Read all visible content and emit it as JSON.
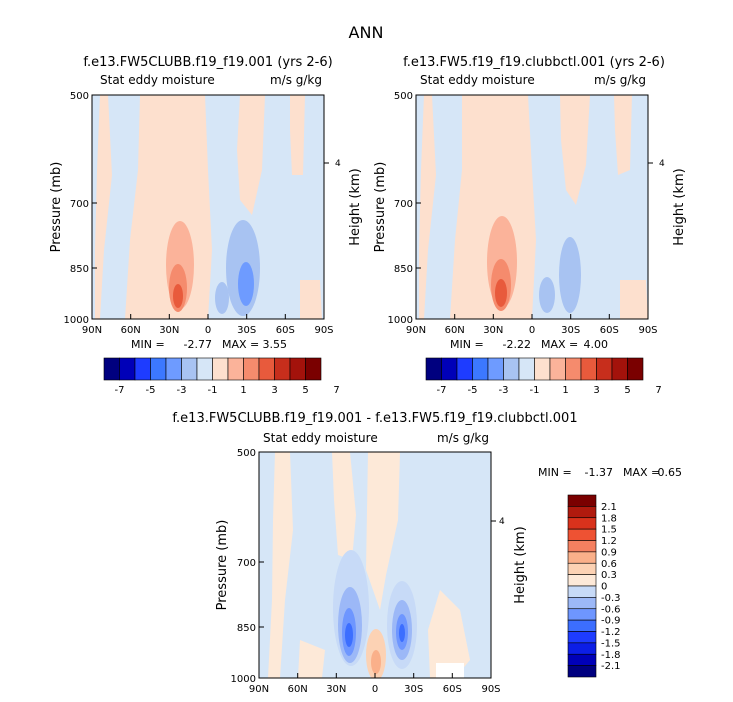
{
  "figure": {
    "title": "ANN"
  },
  "colors": {
    "diverging_main": [
      "#00007f",
      "#0000b8",
      "#1e3cff",
      "#3c78ff",
      "#6e9bff",
      "#a8c3f2",
      "#d6e6f7",
      "#fde0ce",
      "#fbb39a",
      "#f58b6d",
      "#e85a3c",
      "#c72e1c",
      "#a3120b",
      "#7a0000"
    ],
    "diverging_diff": [
      "#00007f",
      "#0000b8",
      "#0c1ee6",
      "#1e3cff",
      "#3c6eff",
      "#6e96ff",
      "#9cb8f7",
      "#c7daf7",
      "#fde9d8",
      "#fcd2b4",
      "#fab08a",
      "#f58060",
      "#ee5233",
      "#d9321c",
      "#b01a0e",
      "#7a0000"
    ],
    "field_light_blue": "#d6e6f7",
    "field_light_orange": "#fde9d8"
  },
  "chart_data": [
    {
      "type": "heatmap",
      "title": "f.e13.FW5CLUBB.f19_f19.001 (yrs 2-6)",
      "left_string": "Stat eddy moisture",
      "right_string": "m/s g/kg",
      "ylabel": "Pressure (mb)",
      "ylabel_right": "Height (km)",
      "x_ticks": [
        "90N",
        "60N",
        "30N",
        "0",
        "30S",
        "60S",
        "90S"
      ],
      "y_ticks": [
        "500",
        "700",
        "850",
        "1000"
      ],
      "y_ticks_right": [
        "4"
      ],
      "xlim": [
        90,
        -90
      ],
      "ylim": [
        1000,
        500
      ],
      "y_scale": "log",
      "min_label": "MIN =",
      "min_value": "-2.77",
      "max_label": "MAX =",
      "max_value": "3.55",
      "colorbar_labels": [
        "-7",
        "-5",
        "-3",
        "-1",
        "1",
        "3",
        "5",
        "7"
      ],
      "colorbar_orientation": "horizontal",
      "features": [
        {
          "lat": 26,
          "p": 880,
          "value": 3.55,
          "sign": "positive"
        },
        {
          "lat": -28,
          "p": 860,
          "value": -2.77,
          "sign": "negative"
        }
      ]
    },
    {
      "type": "heatmap",
      "title": "f.e13.FW5.f19_f19.clubbctl.001 (yrs 2-6)",
      "left_string": "Stat eddy moisture",
      "right_string": "m/s g/kg",
      "ylabel": "Pressure (mb)",
      "ylabel_right": "Height (km)",
      "x_ticks": [
        "90N",
        "60N",
        "30N",
        "0",
        "30S",
        "60S",
        "90S"
      ],
      "y_ticks": [
        "500",
        "700",
        "850",
        "1000"
      ],
      "y_ticks_right": [
        "4"
      ],
      "xlim": [
        90,
        -90
      ],
      "ylim": [
        1000,
        500
      ],
      "y_scale": "log",
      "min_label": "MIN =",
      "min_value": "-2.22",
      "max_label": "MAX =",
      "max_value": "4.00",
      "colorbar_labels": [
        "-7",
        "-5",
        "-3",
        "-1",
        "1",
        "3",
        "5",
        "7"
      ],
      "colorbar_orientation": "horizontal",
      "features": [
        {
          "lat": 28,
          "p": 880,
          "value": 4.0,
          "sign": "positive"
        },
        {
          "lat": -25,
          "p": 850,
          "value": -2.22,
          "sign": "negative"
        }
      ]
    },
    {
      "type": "heatmap",
      "title": "f.e13.FW5CLUBB.f19_f19.001 - f.e13.FW5.f19_f19.clubbctl.001",
      "left_string": "Stat eddy moisture",
      "right_string": "m/s g/kg",
      "ylabel": "Pressure (mb)",
      "ylabel_right": "Height (km)",
      "x_ticks": [
        "90N",
        "60N",
        "30N",
        "0",
        "30S",
        "60S",
        "90S"
      ],
      "y_ticks": [
        "500",
        "700",
        "850",
        "1000"
      ],
      "y_ticks_right": [
        "4"
      ],
      "xlim": [
        90,
        -90
      ],
      "ylim": [
        1000,
        500
      ],
      "y_scale": "log",
      "min_label": "MIN =",
      "min_value": "-1.37",
      "max_label": "MAX =",
      "max_value": "0.65",
      "colorbar_labels": [
        "2.1",
        "1.8",
        "1.5",
        "1.2",
        "0.9",
        "0.6",
        "0.3",
        "0",
        "-0.3",
        "-0.6",
        "-0.9",
        "-1.2",
        "-1.5",
        "-1.8",
        "-2.1"
      ],
      "colorbar_orientation": "vertical",
      "features": [
        {
          "lat": 20,
          "p": 860,
          "value": -1.37,
          "sign": "negative"
        },
        {
          "lat": -25,
          "p": 860,
          "value": -1.2,
          "sign": "negative"
        },
        {
          "lat": 2,
          "p": 930,
          "value": 0.65,
          "sign": "positive"
        }
      ]
    }
  ]
}
